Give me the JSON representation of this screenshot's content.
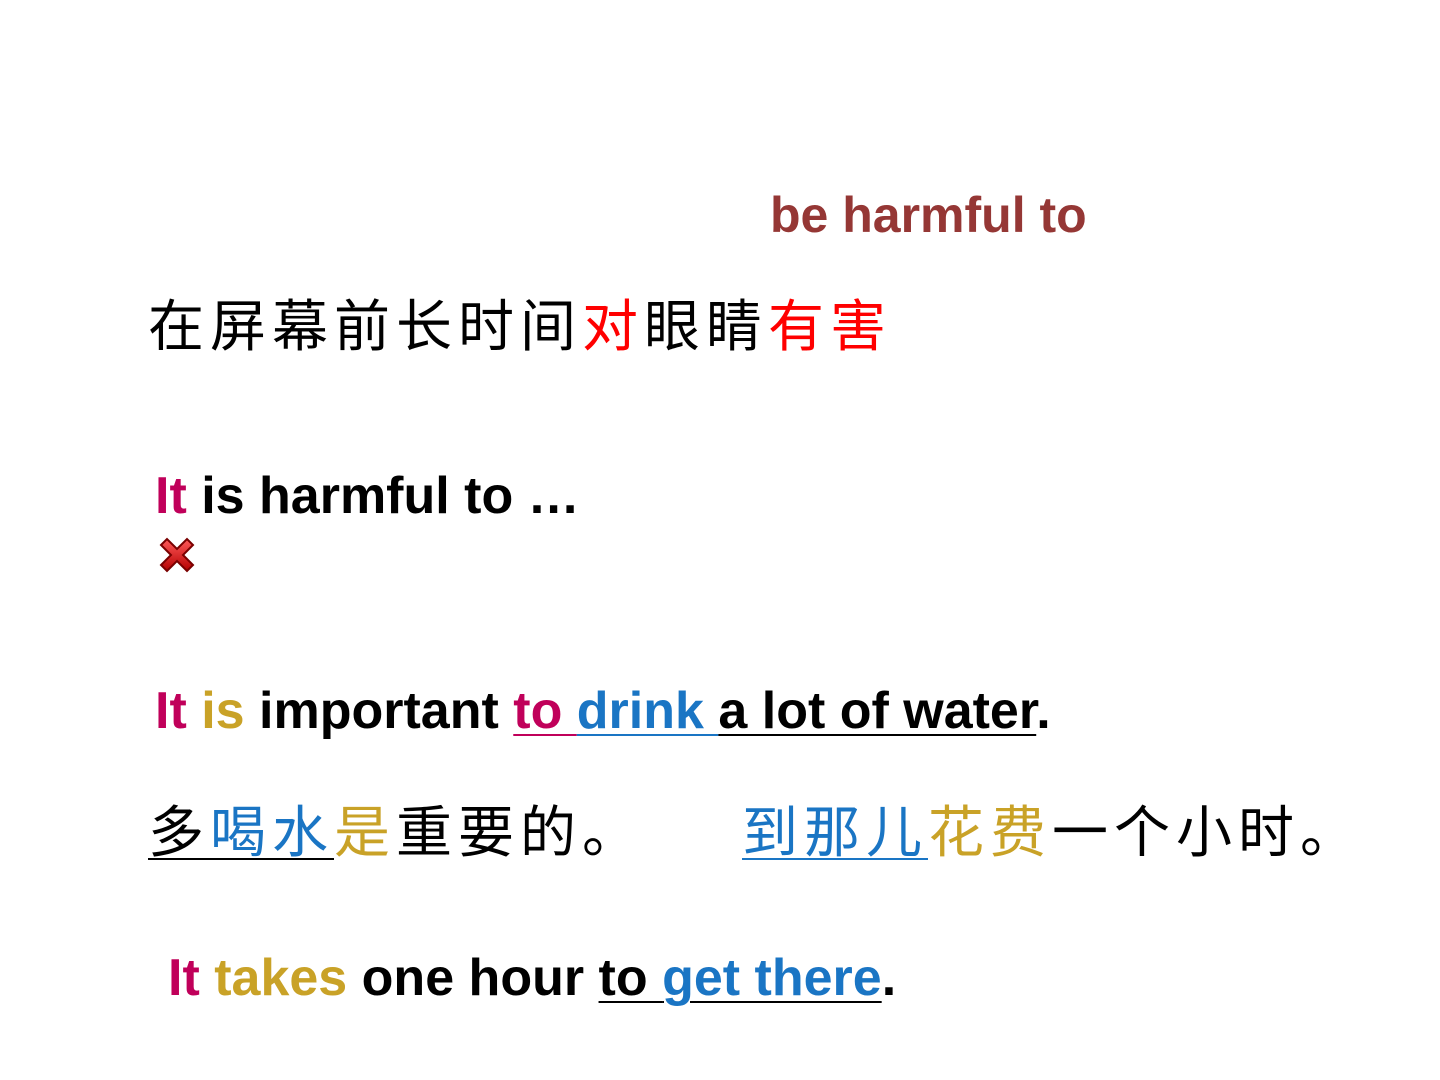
{
  "colors": {
    "phrase": "#953735",
    "black": "#000000",
    "red": "#ff0000",
    "magenta": "#c0005a",
    "gold": "#c9a227",
    "blue": "#1a75c4"
  },
  "phrase": "be harmful to",
  "zh1": {
    "part1": "在屏幕前长时间",
    "part2": "对",
    "part3": "眼睛",
    "part4": "有害"
  },
  "s1": {
    "subject": "It",
    "rest": " is harmful to …"
  },
  "wrong_icon": "red-x-icon",
  "s2": {
    "subject": "It",
    "verb": "is",
    "adj": "important ",
    "to": "to ",
    "drink": "drink ",
    "obj": "a lot of water",
    "period": "."
  },
  "zh2": {
    "p1": "多",
    "p2": "喝水",
    "p3": "是",
    "p4": "重要的。"
  },
  "zh3": {
    "p1": "到那儿",
    "p2": "花费",
    "p3": "一个小时。"
  },
  "s3": {
    "subject": "It",
    "verb": "takes",
    "obj": " one hour ",
    "to": "to ",
    "rest": "get there",
    "period": "."
  }
}
